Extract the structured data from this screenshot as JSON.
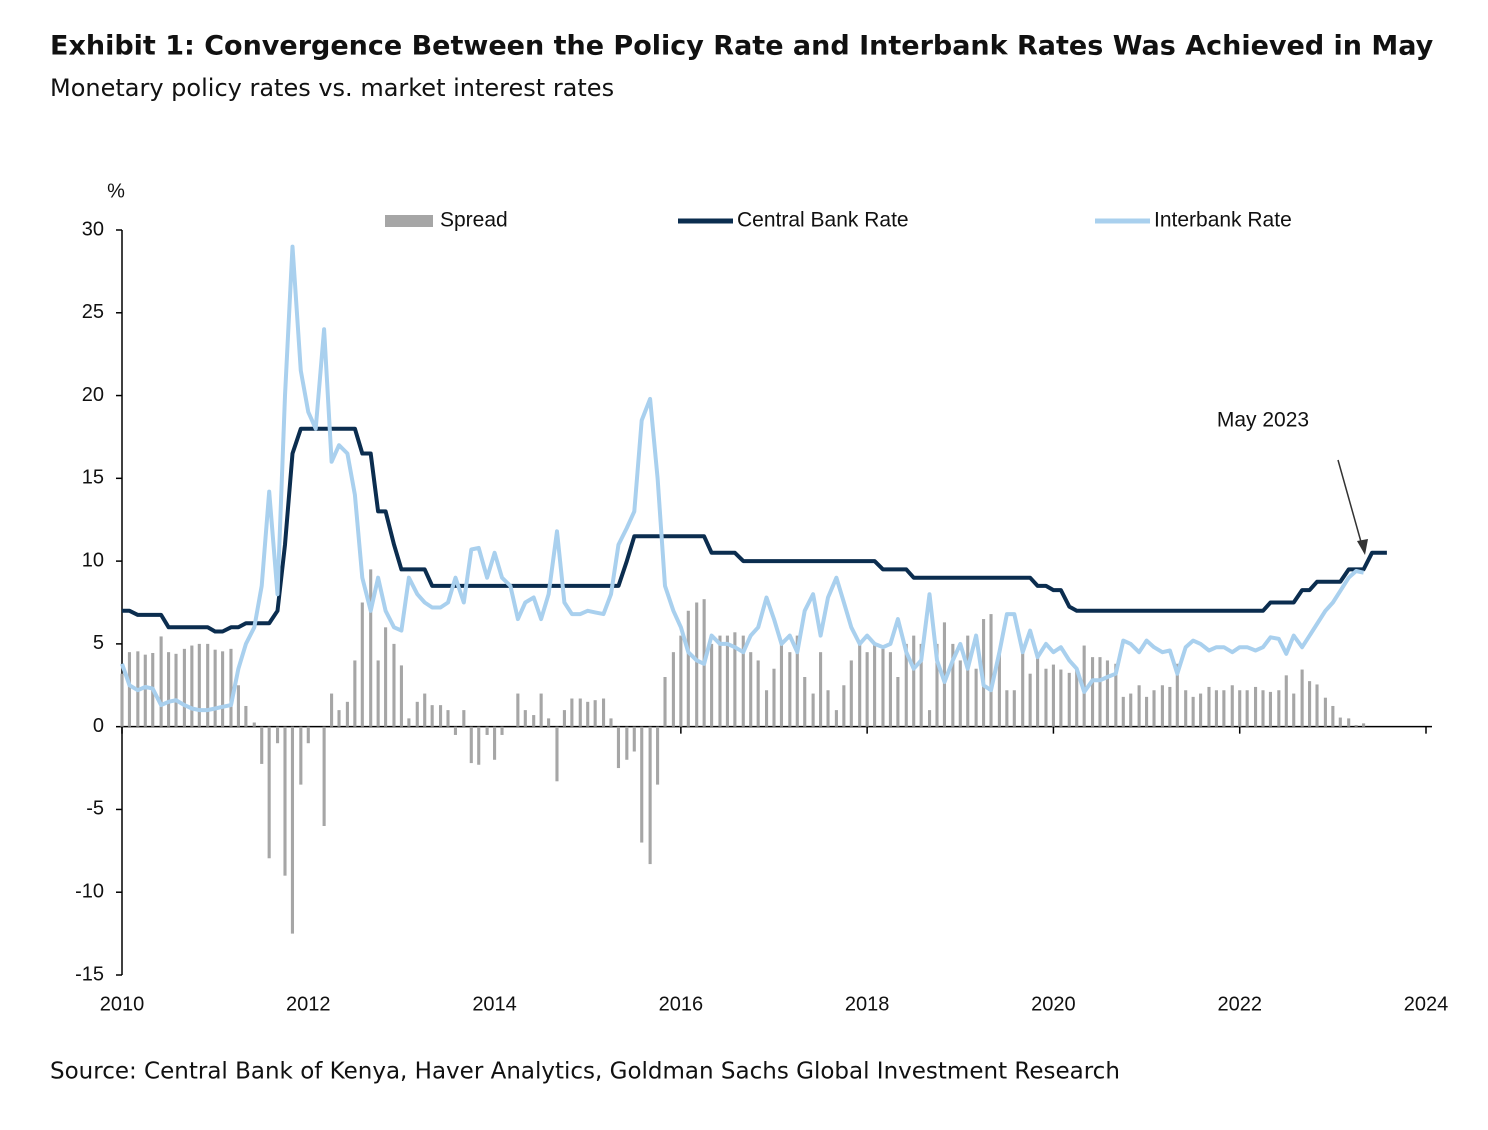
{
  "chart_data": {
    "type": "bar-line",
    "title": "Exhibit 1: Convergence Between the Policy Rate and Interbank Rates Was Achieved in May",
    "subtitle": "Monetary policy rates vs. market interest rates",
    "source": "Source: Central Bank of Kenya, Haver Analytics, Goldman Sachs Global Investment Research",
    "y_unit": "%",
    "annotation": "May 2023",
    "xlim": [
      2010,
      2024
    ],
    "xticks": [
      2010,
      2012,
      2014,
      2016,
      2018,
      2020,
      2022,
      2024
    ],
    "ylim": [
      -15,
      30
    ],
    "yticks": [
      -15,
      -10,
      -5,
      0,
      5,
      10,
      15,
      20,
      25,
      30
    ],
    "x": [
      2010.0,
      2010.08,
      2010.17,
      2010.25,
      2010.33,
      2010.42,
      2010.5,
      2010.58,
      2010.67,
      2010.75,
      2010.83,
      2010.92,
      2011.0,
      2011.08,
      2011.17,
      2011.25,
      2011.33,
      2011.42,
      2011.5,
      2011.58,
      2011.67,
      2011.75,
      2011.83,
      2011.92,
      2012.0,
      2012.08,
      2012.17,
      2012.25,
      2012.33,
      2012.42,
      2012.5,
      2012.58,
      2012.67,
      2012.75,
      2012.83,
      2012.92,
      2013.0,
      2013.08,
      2013.17,
      2013.25,
      2013.33,
      2013.42,
      2013.5,
      2013.58,
      2013.67,
      2013.75,
      2013.83,
      2013.92,
      2014.0,
      2014.08,
      2014.17,
      2014.25,
      2014.33,
      2014.42,
      2014.5,
      2014.58,
      2014.67,
      2014.75,
      2014.83,
      2014.92,
      2015.0,
      2015.08,
      2015.17,
      2015.25,
      2015.33,
      2015.42,
      2015.5,
      2015.58,
      2015.67,
      2015.75,
      2015.83,
      2015.92,
      2016.0,
      2016.08,
      2016.17,
      2016.25,
      2016.33,
      2016.42,
      2016.5,
      2016.58,
      2016.67,
      2016.75,
      2016.83,
      2016.92,
      2017.0,
      2017.08,
      2017.17,
      2017.25,
      2017.33,
      2017.42,
      2017.5,
      2017.58,
      2017.67,
      2017.75,
      2017.83,
      2017.92,
      2018.0,
      2018.08,
      2018.17,
      2018.25,
      2018.33,
      2018.42,
      2018.5,
      2018.58,
      2018.67,
      2018.75,
      2018.83,
      2018.92,
      2019.0,
      2019.08,
      2019.17,
      2019.25,
      2019.33,
      2019.42,
      2019.5,
      2019.58,
      2019.67,
      2019.75,
      2019.83,
      2019.92,
      2020.0,
      2020.08,
      2020.17,
      2020.25,
      2020.33,
      2020.42,
      2020.5,
      2020.58,
      2020.67,
      2020.75,
      2020.83,
      2020.92,
      2021.0,
      2021.08,
      2021.17,
      2021.25,
      2021.33,
      2021.42,
      2021.5,
      2021.58,
      2021.67,
      2021.75,
      2021.83,
      2021.92,
      2022.0,
      2022.08,
      2022.17,
      2022.25,
      2022.33,
      2022.42,
      2022.5,
      2022.58,
      2022.67,
      2022.75,
      2022.83,
      2022.92,
      2023.0,
      2023.08,
      2023.17,
      2023.25,
      2023.33,
      2023.42,
      2023.5,
      2023.58
    ],
    "series": [
      {
        "name": "Spread",
        "type": "bar",
        "color": "#a6a6a6",
        "values": [
          3.2,
          4.5,
          4.55,
          4.35,
          4.45,
          5.45,
          4.5,
          4.4,
          4.7,
          4.9,
          5,
          5,
          4.65,
          4.55,
          4.7,
          2.5,
          1.25,
          0.25,
          -2.25,
          -7.95,
          -1,
          -9,
          -12.5,
          -3.5,
          -1,
          0,
          -6,
          2,
          1,
          1.5,
          4,
          7.5,
          9.5,
          4,
          6,
          5,
          3.7,
          0.5,
          1.5,
          2,
          1.3,
          1.3,
          1,
          -0.5,
          1,
          -2.2,
          -2.3,
          -0.5,
          -2,
          -0.5,
          0,
          2,
          1,
          0.7,
          2,
          0.5,
          -3.3,
          1,
          1.7,
          1.7,
          1.5,
          1.6,
          1.7,
          0.5,
          -2.5,
          -2,
          -1.5,
          -7,
          -8.3,
          -3.5,
          3,
          4.5,
          5.5,
          7,
          7.5,
          7.7,
          5,
          5.5,
          5.5,
          5.7,
          5.5,
          4.5,
          4,
          2.2,
          3.5,
          5,
          4.5,
          5.5,
          3,
          2,
          4.5,
          2.2,
          1,
          2.5,
          4,
          5,
          4.5,
          5,
          4.7,
          4.5,
          3,
          5,
          5.5,
          5,
          1,
          5,
          6.3,
          5,
          4,
          5.5,
          3.5,
          6.5,
          6.8,
          4.5,
          2.2,
          2.2,
          4.5,
          3.2,
          4.3,
          3.5,
          3.75,
          3.45,
          3.25,
          3.5,
          4.9,
          4.2,
          4.2,
          4,
          3.8,
          1.8,
          2,
          2.5,
          1.8,
          2.2,
          2.5,
          2.4,
          3.8,
          2.2,
          1.8,
          2,
          2.4,
          2.2,
          2.2,
          2.5,
          2.2,
          2.2,
          2.4,
          2.2,
          2.1,
          2.2,
          3.1,
          2,
          3.45,
          2.75,
          2.55,
          1.75,
          1.25,
          0.55,
          0.5,
          0.1,
          0.2,
          null,
          null,
          null
        ]
      },
      {
        "name": "Central Bank Rate",
        "type": "line",
        "color": "#0b2d4f",
        "values": [
          7,
          7,
          6.75,
          6.75,
          6.75,
          6.75,
          6,
          6,
          6,
          6,
          6,
          6,
          5.75,
          5.75,
          6,
          6,
          6.25,
          6.25,
          6.25,
          6.25,
          7,
          11,
          16.5,
          18,
          18,
          18,
          18,
          18,
          18,
          18,
          18,
          16.5,
          16.5,
          13,
          13,
          11,
          9.5,
          9.5,
          9.5,
          9.5,
          8.5,
          8.5,
          8.5,
          8.5,
          8.5,
          8.5,
          8.5,
          8.5,
          8.5,
          8.5,
          8.5,
          8.5,
          8.5,
          8.5,
          8.5,
          8.5,
          8.5,
          8.5,
          8.5,
          8.5,
          8.5,
          8.5,
          8.5,
          8.5,
          8.5,
          10,
          11.5,
          11.5,
          11.5,
          11.5,
          11.5,
          11.5,
          11.5,
          11.5,
          11.5,
          11.5,
          10.5,
          10.5,
          10.5,
          10.5,
          10,
          10,
          10,
          10,
          10,
          10,
          10,
          10,
          10,
          10,
          10,
          10,
          10,
          10,
          10,
          10,
          10,
          10,
          9.5,
          9.5,
          9.5,
          9.5,
          9,
          9,
          9,
          9,
          9,
          9,
          9,
          9,
          9,
          9,
          9,
          9,
          9,
          9,
          9,
          9,
          8.5,
          8.5,
          8.25,
          8.25,
          7.25,
          7,
          7,
          7,
          7,
          7,
          7,
          7,
          7,
          7,
          7,
          7,
          7,
          7,
          7,
          7,
          7,
          7,
          7,
          7,
          7,
          7,
          7,
          7,
          7,
          7,
          7.5,
          7.5,
          7.5,
          7.5,
          8.25,
          8.25,
          8.75,
          8.75,
          8.75,
          8.75,
          9.5,
          9.5,
          9.5,
          10.5,
          10.5,
          10.5
        ]
      },
      {
        "name": "Interbank Rate",
        "type": "line",
        "color": "#a9d0ee",
        "values": [
          3.8,
          2.5,
          2.2,
          2.4,
          2.3,
          1.3,
          1.5,
          1.6,
          1.3,
          1.1,
          1.0,
          1.0,
          1.1,
          1.2,
          1.3,
          3.5,
          5,
          6,
          8.5,
          14.2,
          8,
          20,
          29,
          21.5,
          19,
          18,
          24,
          16,
          17,
          16.5,
          14,
          9,
          7,
          9,
          7,
          6,
          5.8,
          9,
          8,
          7.5,
          7.2,
          7.2,
          7.5,
          9,
          7.5,
          10.7,
          10.8,
          9,
          10.5,
          9,
          8.5,
          6.5,
          7.5,
          7.8,
          6.5,
          8,
          11.8,
          7.5,
          6.8,
          6.8,
          7,
          6.9,
          6.8,
          8,
          11,
          12,
          13,
          18.5,
          19.8,
          15,
          8.5,
          7,
          6,
          4.5,
          4,
          3.8,
          5.5,
          5,
          5,
          4.8,
          4.5,
          5.5,
          6,
          7.8,
          6.5,
          5,
          5.5,
          4.5,
          7,
          8,
          5.5,
          7.8,
          9,
          7.5,
          6,
          5,
          5.5,
          5,
          4.8,
          5,
          6.5,
          4.5,
          3.5,
          4,
          8,
          4,
          2.7,
          4,
          5,
          3.5,
          5.5,
          2.5,
          2.2,
          4.5,
          6.8,
          6.8,
          4.5,
          5.8,
          4.2,
          5,
          4.5,
          4.8,
          4,
          3.5,
          2.1,
          2.8,
          2.8,
          3,
          3.2,
          5.2,
          5,
          4.5,
          5.2,
          4.8,
          4.5,
          4.6,
          3.2,
          4.8,
          5.2,
          5,
          4.6,
          4.8,
          4.8,
          4.5,
          4.8,
          4.8,
          4.6,
          4.8,
          5.4,
          5.3,
          4.4,
          5.5,
          4.8,
          5.5,
          6.2,
          7,
          7.5,
          8.2,
          9,
          9.4,
          9.3,
          null,
          null,
          null
        ]
      }
    ]
  }
}
